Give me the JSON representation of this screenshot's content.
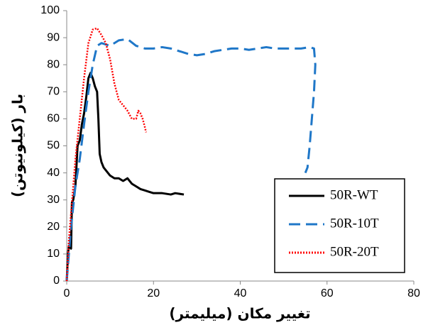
{
  "chart_data": {
    "type": "line",
    "x_label": "تغییر مکان (میلیمتر)",
    "y_label": "بار (کیلونیوتن)",
    "xlim": [
      0,
      80
    ],
    "xticks": [
      0,
      20,
      40,
      60,
      80
    ],
    "ylim": [
      0,
      100
    ],
    "yticks": [
      0,
      10,
      20,
      30,
      40,
      50,
      60,
      70,
      80,
      90,
      100
    ],
    "grid": false,
    "legend": "lower right",
    "series": [
      {
        "name": "50R-WT",
        "color": "#000000",
        "style": "solid",
        "x": [
          0,
          0.3,
          0.5,
          1,
          1.2,
          1.5,
          2,
          2.5,
          3,
          3.5,
          4,
          4.5,
          5,
          5.5,
          6,
          6.5,
          7,
          7.3,
          7.6,
          8,
          8.5,
          9,
          10,
          11,
          12,
          13,
          14,
          15,
          16,
          17,
          18,
          19,
          20,
          22,
          24,
          25,
          27
        ],
        "values": [
          0,
          10,
          13,
          12,
          29,
          30,
          35,
          50,
          52,
          58,
          62,
          68,
          75,
          77,
          75,
          72,
          70,
          60,
          47,
          44,
          42,
          41,
          39,
          38,
          38,
          37,
          38,
          36,
          35,
          34,
          33.5,
          33,
          32.5,
          32.5,
          32,
          32.5,
          32
        ]
      },
      {
        "name": "50R-10T",
        "color": "#1f77c8",
        "style": "dashed",
        "x": [
          0,
          1,
          2,
          3,
          4,
          5,
          6,
          7,
          8,
          10,
          12,
          14,
          16,
          18,
          20,
          22,
          24,
          26,
          28,
          30,
          32,
          34,
          36,
          38,
          40,
          42,
          44,
          46,
          48,
          50,
          52,
          54,
          56,
          57,
          57.3,
          57,
          56.5,
          56,
          55.5,
          55
        ],
        "values": [
          0,
          20,
          35,
          45,
          58,
          70,
          80,
          87,
          88,
          87,
          89,
          89.5,
          87,
          86,
          86,
          86.5,
          86,
          85,
          84,
          83.5,
          84,
          85,
          85.5,
          86,
          86,
          85.5,
          86,
          86.5,
          86,
          86,
          86,
          86,
          86.5,
          86,
          80,
          70,
          60,
          50,
          42,
          40
        ]
      },
      {
        "name": "50R-20T",
        "color": "#ff0000",
        "style": "dotted",
        "x": [
          0,
          0.5,
          1,
          1.5,
          2,
          3,
          4,
          5,
          6,
          7,
          8,
          9,
          10,
          11,
          12,
          13,
          14,
          15,
          16,
          16.5,
          17,
          17.5,
          18,
          18.3
        ],
        "values": [
          0,
          15,
          25,
          35,
          45,
          60,
          75,
          88,
          93,
          93.5,
          91,
          88,
          82,
          73,
          67,
          65,
          63,
          60,
          60,
          63,
          62,
          60,
          57,
          55
        ]
      }
    ]
  }
}
